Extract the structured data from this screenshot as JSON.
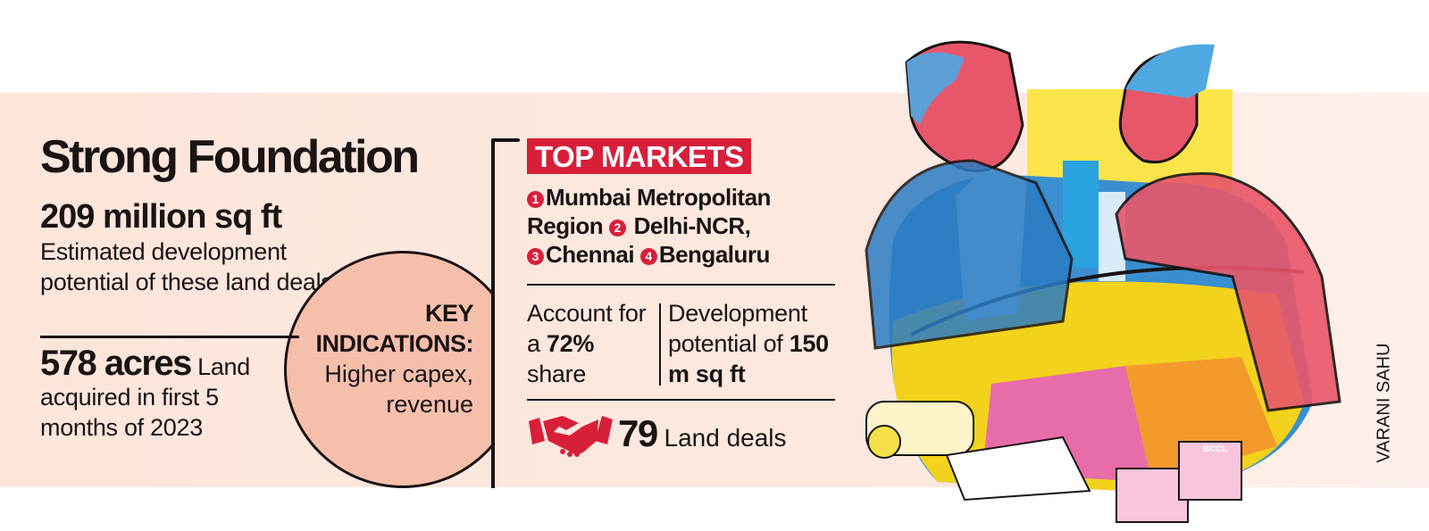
{
  "title": "Strong Foundation",
  "stat1": {
    "value": "209 million sq ft",
    "description": "Estimated development potential of these land deals"
  },
  "stat2": {
    "value": "578 acres",
    "description_lead": "Land",
    "description": "acquired in first 5 months of 2023"
  },
  "key_indications": {
    "heading_1": "KEY",
    "heading_2": "INDICATIONS:",
    "line_1": "Higher capex,",
    "line_2": "revenue"
  },
  "top_markets": {
    "badge": "TOP MARKETS",
    "items": [
      {
        "rank": "1",
        "name": "Mumbai Metropolitan Region"
      },
      {
        "rank": "2",
        "name": "Delhi-NCR,"
      },
      {
        "rank": "3",
        "name": "Chennai"
      },
      {
        "rank": "4",
        "name": "Bengaluru"
      }
    ],
    "share": {
      "pre": "Account for a",
      "value": "72%",
      "post": "share"
    },
    "potential": {
      "pre": "Development potential of",
      "value": "150 m sq ft"
    },
    "deals": {
      "value": "79",
      "label": "Land deals",
      "icon": "handshake-icon"
    }
  },
  "credit": "VARANI SAHU",
  "watermark": "BCCL",
  "colors": {
    "accent": "#d81f3a",
    "band": "#fce6dc",
    "circle": "#f5bfac"
  }
}
